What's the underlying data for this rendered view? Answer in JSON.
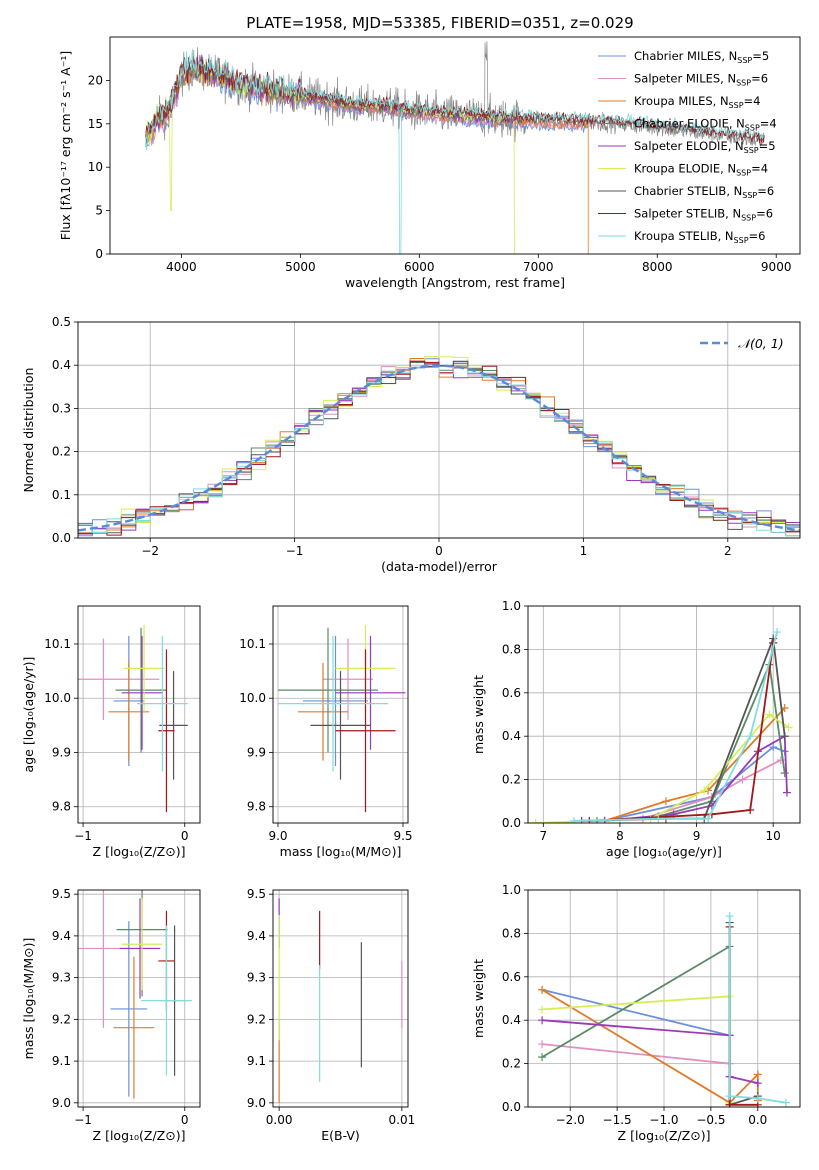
{
  "figure_title": "PLATE=1958, MJD=53385, FIBERID=0351, z=0.029",
  "colors": {
    "chabrier_miles": "#6b8fdd",
    "salpeter_miles": "#e08fc0",
    "kroupa_miles": "#e07b2a",
    "chabrier_elodie": "#5a8a66",
    "salpeter_elodie": "#9a3ab8",
    "kroupa_elodie": "#d4ee5a",
    "chabrier_stelib": "#555555",
    "salpeter_stelib": "#a01818",
    "kroupa_stelib": "#7fdde0",
    "grid": "#b0b0b0",
    "normal_curve": "#5a8ad8"
  },
  "chart_data": [
    {
      "type": "line",
      "xlabel": "wavelength [Angstrom, rest frame]",
      "ylabel": "Flux [fλ10⁻¹⁷ erg cm⁻² s⁻¹ A⁻¹]",
      "xlim": [
        3400,
        9200
      ],
      "ylim": [
        0,
        25
      ],
      "xticks": [
        "4000",
        "5000",
        "6000",
        "7000",
        "8000",
        "9000"
      ],
      "yticks": [
        "0",
        "5",
        "10",
        "15",
        "20"
      ],
      "grid": false,
      "legend_position": "top-right",
      "legend": [
        {
          "base": "Chabrier MILES, N",
          "sub": "SSP",
          "tail": "=5"
        },
        {
          "base": "Salpeter MILES, N",
          "sub": "SSP",
          "tail": "=6"
        },
        {
          "base": "Kroupa MILES, N",
          "sub": "SSP",
          "tail": "=4"
        },
        {
          "base": "Chabrier ELODIE, N",
          "sub": "SSP",
          "tail": "=4"
        },
        {
          "base": "Salpeter ELODIE, N",
          "sub": "SSP",
          "tail": "=5"
        },
        {
          "base": "Kroupa ELODIE, N",
          "sub": "SSP",
          "tail": "=4"
        },
        {
          "base": "Chabrier STELIB, N",
          "sub": "SSP",
          "tail": "=6"
        },
        {
          "base": "Salpeter STELIB, N",
          "sub": "SSP",
          "tail": "=6"
        },
        {
          "base": "Kroupa STELIB, N",
          "sub": "SSP",
          "tail": "=6"
        }
      ],
      "continuum_points": [
        [
          3700,
          13
        ],
        [
          3800,
          15.5
        ],
        [
          3900,
          16.5
        ],
        [
          4000,
          20.5
        ],
        [
          4100,
          21.5
        ],
        [
          4300,
          20.5
        ],
        [
          4500,
          19.5
        ],
        [
          4700,
          19
        ],
        [
          4900,
          18.5
        ],
        [
          5100,
          18
        ],
        [
          5300,
          17.5
        ],
        [
          5500,
          17
        ],
        [
          5700,
          17
        ],
        [
          5900,
          16.5
        ],
        [
          6100,
          16.2
        ],
        [
          6300,
          16
        ],
        [
          6500,
          15.8
        ],
        [
          6700,
          15.6
        ],
        [
          6900,
          15.5
        ],
        [
          7100,
          15.3
        ],
        [
          7400,
          15.2
        ],
        [
          7800,
          14.8
        ],
        [
          8200,
          14.2
        ],
        [
          8600,
          13.5
        ],
        [
          8900,
          13
        ]
      ]
    },
    {
      "type": "bar",
      "xlabel": "(data-model)/error",
      "ylabel": "Normed distribution",
      "xlim": [
        -2.5,
        2.5
      ],
      "ylim": [
        0,
        0.5
      ],
      "xticks": [
        "−2",
        "−1",
        "0",
        "1",
        "2"
      ],
      "yticks": [
        "0.0",
        "0.1",
        "0.2",
        "0.3",
        "0.4",
        "0.5"
      ],
      "grid": true,
      "legend_position": "top-right",
      "legend_label": "𝒩(0, 1)",
      "bin_width": 0.1
    },
    {
      "type": "scatter",
      "xlabel": "Z [log₁₀(Z/Z⊙)]",
      "ylabel": "age  [log₁₀(age/yr)]",
      "xlim": [
        -1.05,
        0.15
      ],
      "ylim": [
        9.77,
        10.17
      ],
      "xticks": [
        "−1",
        "0"
      ],
      "yticks": [
        "9.8",
        "9.9",
        "10.0",
        "10.1"
      ],
      "grid": true,
      "points": [
        {
          "x": -0.55,
          "y": 9.995,
          "xerr": 0.15,
          "yerr": 0.12
        },
        {
          "x": -0.8,
          "y": 10.035,
          "xerr": 0.55,
          "yerr": 0.075
        },
        {
          "x": -0.55,
          "y": 9.975,
          "xerr": 0.2,
          "yerr": 0.09
        },
        {
          "x": -0.43,
          "y": 10.015,
          "xerr": 0.25,
          "yerr": 0.115
        },
        {
          "x": -0.42,
          "y": 10.01,
          "xerr": 0.2,
          "yerr": 0.105
        },
        {
          "x": -0.4,
          "y": 10.055,
          "xerr": 0.2,
          "yerr": 0.08
        },
        {
          "x": -0.11,
          "y": 9.95,
          "xerr": 0.14,
          "yerr": 0.1
        },
        {
          "x": -0.18,
          "y": 9.94,
          "xerr": 0.08,
          "yerr": 0.15
        },
        {
          "x": -0.22,
          "y": 9.99,
          "xerr": 0.25,
          "yerr": 0.125
        }
      ]
    },
    {
      "type": "scatter",
      "xlabel": "mass [log₁₀(M/M⊙)]",
      "ylabel": "",
      "xlim": [
        8.98,
        9.52
      ],
      "ylim": [
        9.77,
        10.17
      ],
      "xticks": [
        "9.0",
        "9.5"
      ],
      "yticks": [
        "9.8",
        "9.9",
        "10.0",
        "10.1"
      ],
      "grid": true,
      "points": [
        {
          "x": 9.23,
          "y": 9.995,
          "xerr": 0.13,
          "yerr": 0.12
        },
        {
          "x": 9.28,
          "y": 10.035,
          "xerr": 0.1,
          "yerr": 0.075
        },
        {
          "x": 9.18,
          "y": 9.975,
          "xerr": 0.1,
          "yerr": 0.09
        },
        {
          "x": 9.2,
          "y": 10.015,
          "xerr": 0.2,
          "yerr": 0.115
        },
        {
          "x": 9.37,
          "y": 10.01,
          "xerr": 0.14,
          "yerr": 0.105
        },
        {
          "x": 9.35,
          "y": 10.055,
          "xerr": 0.12,
          "yerr": 0.08
        },
        {
          "x": 9.25,
          "y": 9.95,
          "xerr": 0.12,
          "yerr": 0.1
        },
        {
          "x": 9.35,
          "y": 9.94,
          "xerr": 0.12,
          "yerr": 0.15
        },
        {
          "x": 9.22,
          "y": 9.99,
          "xerr": 0.22,
          "yerr": 0.125
        }
      ]
    },
    {
      "type": "line",
      "xlabel": "age  [log₁₀(age/yr)]",
      "ylabel": "mass weight",
      "xlim": [
        6.8,
        10.35
      ],
      "ylim": [
        0,
        1.0
      ],
      "xticks": [
        "7",
        "8",
        "9",
        "10"
      ],
      "yticks": [
        "0.0",
        "0.2",
        "0.4",
        "0.6",
        "0.8",
        "1.0"
      ],
      "grid": true,
      "series": [
        {
          "color_key": "chabrier_miles",
          "x": [
            7.8,
            9.2,
            10.0,
            10.15
          ],
          "y": [
            0.01,
            0.12,
            0.35,
            0.33
          ]
        },
        {
          "color_key": "salpeter_miles",
          "x": [
            8.3,
            9.2,
            9.6,
            10.1
          ],
          "y": [
            0.02,
            0.12,
            0.2,
            0.29
          ]
        },
        {
          "color_key": "kroupa_miles",
          "x": [
            7.8,
            8.6,
            9.15,
            10.15
          ],
          "y": [
            0.01,
            0.1,
            0.15,
            0.53
          ]
        },
        {
          "color_key": "chabrier_elodie",
          "x": [
            7.7,
            8.5,
            9.2,
            9.95,
            10.15
          ],
          "y": [
            0.01,
            0.03,
            0.1,
            0.73,
            0.23
          ]
        },
        {
          "color_key": "salpeter_elodie",
          "x": [
            7.8,
            8.7,
            9.2,
            9.8,
            10.15,
            10.18
          ],
          "y": [
            0.01,
            0.04,
            0.08,
            0.33,
            0.4,
            0.14
          ]
        },
        {
          "color_key": "kroupa_elodie",
          "x": [
            6.9,
            8.4,
            9.1,
            9.95,
            10.2
          ],
          "y": [
            0.0,
            0.02,
            0.15,
            0.5,
            0.44
          ]
        },
        {
          "color_key": "chabrier_stelib",
          "x": [
            7.5,
            8.6,
            9.1,
            10.0,
            10.15
          ],
          "y": [
            0.01,
            0.02,
            0.02,
            0.85,
            0.4
          ]
        },
        {
          "color_key": "salpeter_stelib",
          "x": [
            7.6,
            9.2,
            9.7,
            10.0
          ],
          "y": [
            0.01,
            0.04,
            0.06,
            0.83
          ]
        },
        {
          "color_key": "kroupa_stelib",
          "x": [
            7.4,
            8.5,
            9.15,
            9.7,
            10.05
          ],
          "y": [
            0.01,
            0.02,
            0.02,
            0.4,
            0.88
          ]
        }
      ]
    },
    {
      "type": "scatter",
      "xlabel": "Z [log₁₀(Z/Z⊙)]",
      "ylabel": "mass [log₁₀(M/M⊙)]",
      "xlim": [
        -1.05,
        0.15
      ],
      "ylim": [
        8.99,
        9.51
      ],
      "xticks": [
        "−1",
        "0"
      ],
      "yticks": [
        "9.0",
        "9.1",
        "9.2",
        "9.3",
        "9.4",
        "9.5"
      ],
      "grid": true,
      "points": [
        {
          "x": -0.55,
          "y": 9.225,
          "xerr": 0.18,
          "yerr": 0.21
        },
        {
          "x": -0.8,
          "y": 9.37,
          "xerr": 0.55,
          "yerr": 0.19
        },
        {
          "x": -0.5,
          "y": 9.18,
          "xerr": 0.2,
          "yerr": 0.17
        },
        {
          "x": -0.42,
          "y": 9.415,
          "xerr": 0.25,
          "yerr": 0.16
        },
        {
          "x": -0.44,
          "y": 9.37,
          "xerr": 0.2,
          "yerr": 0.12
        },
        {
          "x": -0.42,
          "y": 9.38,
          "xerr": 0.2,
          "yerr": 0.11
        },
        {
          "x": -0.1,
          "y": 9.245,
          "xerr": 0.14,
          "yerr": 0.18
        },
        {
          "x": -0.18,
          "y": 9.34,
          "xerr": 0.08,
          "yerr": 0.12
        },
        {
          "x": -0.18,
          "y": 9.245,
          "xerr": 0.25,
          "yerr": 0.18
        }
      ]
    },
    {
      "type": "scatter",
      "xlabel": "E(B-V)",
      "ylabel": "",
      "xlim": [
        -0.0005,
        0.0105
      ],
      "ylim": [
        8.99,
        9.51
      ],
      "xticks": [
        "0.00",
        "0.01"
      ],
      "yticks": [
        "9.0",
        "9.1",
        "9.2",
        "9.3",
        "9.4",
        "9.5"
      ],
      "grid": true,
      "points": [
        {
          "x": 0.0,
          "y": 9.1,
          "yerr": 0.1
        },
        {
          "x": 0.0,
          "y": 9.43,
          "yerr": 0.06
        },
        {
          "x": 0.0,
          "y": 9.3,
          "yerr": 0.15
        },
        {
          "x": 0.0033,
          "y": 9.39,
          "yerr": 0.07
        },
        {
          "x": 0.0033,
          "y": 9.19,
          "yerr": 0.14
        },
        {
          "x": 0.0067,
          "y": 9.235,
          "yerr": 0.15
        },
        {
          "x": 0.01,
          "y": 9.26,
          "yerr": 0.08
        }
      ]
    },
    {
      "type": "line",
      "xlabel": "Z [log₁₀(Z/Z⊙)]",
      "ylabel": "mass weight",
      "xlim": [
        -2.45,
        0.45
      ],
      "ylim": [
        0,
        1.0
      ],
      "xticks": [
        "−2.0",
        "−1.5",
        "−1.0",
        "−0.5",
        "0.0"
      ],
      "yticks": [
        "0.0",
        "0.2",
        "0.4",
        "0.6",
        "0.8",
        "1.0"
      ],
      "grid": true,
      "series": [
        {
          "color_key": "chabrier_miles",
          "x": [
            -2.3,
            -0.3,
            -0.3
          ],
          "y": [
            0.54,
            0.33,
            0.01
          ]
        },
        {
          "color_key": "salpeter_miles",
          "x": [
            -2.3,
            -0.3,
            -0.3
          ],
          "y": [
            0.29,
            0.2,
            0.01
          ]
        },
        {
          "color_key": "kroupa_miles",
          "x": [
            -2.3,
            -0.3,
            0.0,
            0.0
          ],
          "y": [
            0.54,
            0.02,
            0.15,
            0.03
          ]
        },
        {
          "color_key": "chabrier_elodie",
          "x": [
            -2.3,
            -0.3,
            -0.3
          ],
          "y": [
            0.23,
            0.74,
            0.01
          ]
        },
        {
          "color_key": "salpeter_elodie",
          "x": [
            -2.3,
            -0.3,
            -0.3,
            0.0
          ],
          "y": [
            0.4,
            0.33,
            0.14,
            0.11
          ]
        },
        {
          "color_key": "kroupa_elodie",
          "x": [
            -2.3,
            -0.3,
            -0.3
          ],
          "y": [
            0.45,
            0.51,
            0.02
          ]
        },
        {
          "color_key": "chabrier_stelib",
          "x": [
            -0.3,
            -0.3,
            0.0
          ],
          "y": [
            0.85,
            0.01,
            0.05
          ]
        },
        {
          "color_key": "salpeter_stelib",
          "x": [
            -0.3,
            -0.3,
            0.0
          ],
          "y": [
            0.83,
            0.01,
            0.01
          ]
        },
        {
          "color_key": "kroupa_stelib",
          "x": [
            -0.3,
            -0.3,
            0.0,
            0.3
          ],
          "y": [
            0.88,
            0.05,
            0.04,
            0.02
          ]
        }
      ]
    }
  ]
}
